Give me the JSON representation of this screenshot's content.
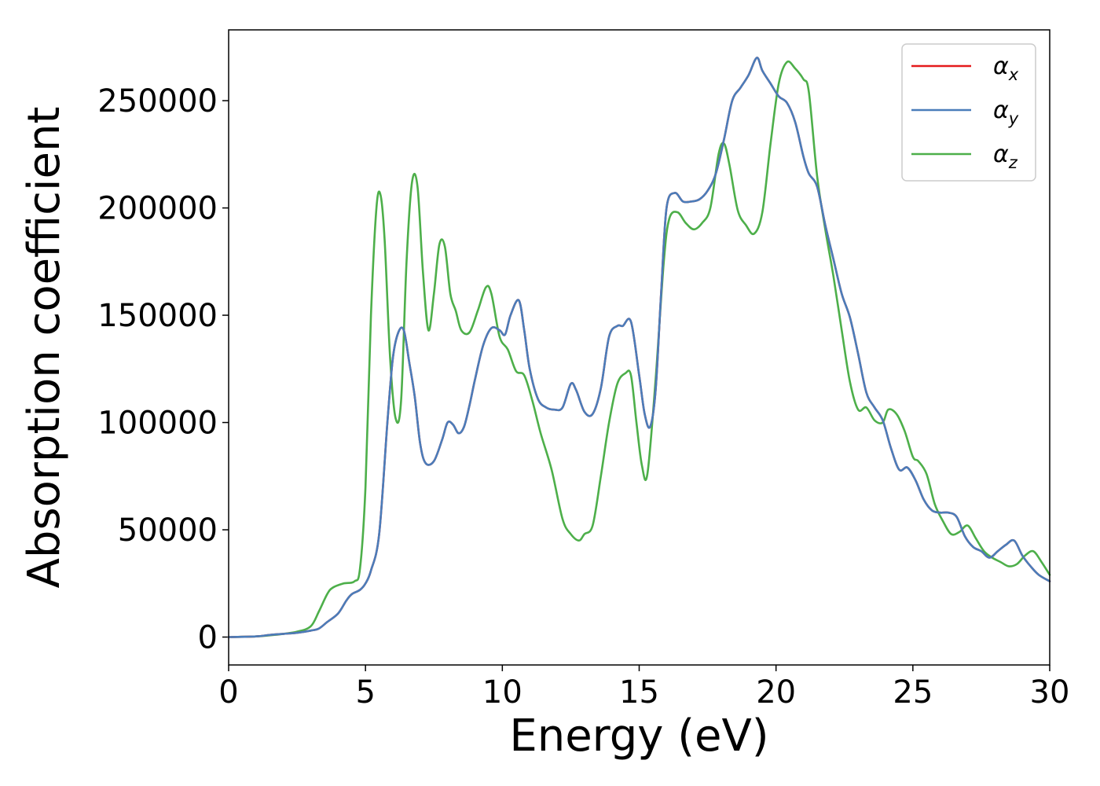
{
  "chart_data": {
    "type": "line",
    "xlabel": "Energy (eV)",
    "ylabel": "Absorption coefficient",
    "xlim": [
      0,
      30
    ],
    "ylim": [
      -13000,
      283000
    ],
    "xticks": [
      0,
      5,
      10,
      15,
      20,
      25,
      30
    ],
    "yticks": [
      0,
      50000,
      100000,
      150000,
      200000,
      250000
    ],
    "legend_position": "top-right",
    "grid": false,
    "series": [
      {
        "name": "αx",
        "label_base": "α",
        "label_sub": "x",
        "color": "#e41a1c",
        "x": [
          0,
          1,
          1.5,
          2,
          2.5,
          3,
          3.3,
          3.6,
          4,
          4.3,
          4.5,
          4.8,
          5,
          5.2,
          5.5,
          5.8,
          6,
          6.2,
          6.4,
          6.6,
          6.8,
          7,
          7.2,
          7.5,
          7.8,
          8,
          8.2,
          8.4,
          8.6,
          8.8,
          9,
          9.3,
          9.6,
          9.9,
          10.1,
          10.3,
          10.6,
          10.8,
          11,
          11.3,
          11.6,
          11.9,
          12.2,
          12.5,
          12.7,
          13,
          13.3,
          13.6,
          13.9,
          14.2,
          14.4,
          14.7,
          15,
          15.2,
          15.4,
          15.6,
          15.8,
          16,
          16.3,
          16.6,
          16.9,
          17.2,
          17.5,
          17.8,
          18.1,
          18.4,
          18.7,
          19,
          19.3,
          19.5,
          19.8,
          20.1,
          20.4,
          20.7,
          21,
          21.2,
          21.5,
          21.8,
          22.1,
          22.4,
          22.7,
          23,
          23.3,
          23.6,
          23.9,
          24.2,
          24.5,
          24.8,
          25.1,
          25.4,
          25.7,
          26,
          26.3,
          26.6,
          26.9,
          27.2,
          27.5,
          27.8,
          28.1,
          28.4,
          28.7,
          29,
          29.3,
          29.6,
          30
        ],
        "y": [
          0,
          300,
          1000,
          1500,
          2000,
          3000,
          4000,
          7000,
          11000,
          17000,
          20000,
          22000,
          25000,
          31000,
          48000,
          100000,
          130000,
          142000,
          143000,
          128000,
          112000,
          90000,
          81000,
          82000,
          92000,
          100000,
          99000,
          95000,
          98000,
          108000,
          120000,
          136000,
          144000,
          143000,
          141000,
          150000,
          157000,
          143000,
          125000,
          111000,
          107000,
          106000,
          107000,
          118000,
          115000,
          105000,
          104000,
          116000,
          140000,
          145000,
          145000,
          147000,
          122000,
          104000,
          98000,
          115000,
          160000,
          200000,
          207000,
          203000,
          203000,
          204000,
          208000,
          216000,
          232000,
          250000,
          256000,
          262000,
          270000,
          264000,
          258000,
          252000,
          249000,
          240000,
          224000,
          216000,
          210000,
          192000,
          176000,
          160000,
          149000,
          132000,
          114000,
          107000,
          101000,
          88000,
          78000,
          79000,
          73000,
          64000,
          59000,
          58000,
          58000,
          56000,
          47000,
          42000,
          40000,
          37000,
          40000,
          43000,
          45000,
          38000,
          33000,
          29000,
          26000
        ]
      },
      {
        "name": "αy",
        "label_base": "α",
        "label_sub": "y",
        "color": "#4a7dba",
        "x": [
          0,
          1,
          1.5,
          2,
          2.5,
          3,
          3.3,
          3.6,
          4,
          4.3,
          4.5,
          4.8,
          5,
          5.2,
          5.5,
          5.8,
          6,
          6.2,
          6.4,
          6.6,
          6.8,
          7,
          7.2,
          7.5,
          7.8,
          8,
          8.2,
          8.4,
          8.6,
          8.8,
          9,
          9.3,
          9.6,
          9.9,
          10.1,
          10.3,
          10.6,
          10.8,
          11,
          11.3,
          11.6,
          11.9,
          12.2,
          12.5,
          12.7,
          13,
          13.3,
          13.6,
          13.9,
          14.2,
          14.4,
          14.7,
          15,
          15.2,
          15.4,
          15.6,
          15.8,
          16,
          16.3,
          16.6,
          16.9,
          17.2,
          17.5,
          17.8,
          18.1,
          18.4,
          18.7,
          19,
          19.3,
          19.5,
          19.8,
          20.1,
          20.4,
          20.7,
          21,
          21.2,
          21.5,
          21.8,
          22.1,
          22.4,
          22.7,
          23,
          23.3,
          23.6,
          23.9,
          24.2,
          24.5,
          24.8,
          25.1,
          25.4,
          25.7,
          26,
          26.3,
          26.6,
          26.9,
          27.2,
          27.5,
          27.8,
          28.1,
          28.4,
          28.7,
          29,
          29.3,
          29.6,
          30
        ],
        "y": [
          0,
          300,
          1000,
          1500,
          2000,
          3000,
          4000,
          7000,
          11000,
          17000,
          20000,
          22000,
          25000,
          31000,
          48000,
          100000,
          130000,
          142000,
          143000,
          128000,
          112000,
          90000,
          81000,
          82000,
          92000,
          100000,
          99000,
          95000,
          98000,
          108000,
          120000,
          136000,
          144000,
          143000,
          141000,
          150000,
          157000,
          143000,
          125000,
          111000,
          107000,
          106000,
          107000,
          118000,
          115000,
          105000,
          104000,
          116000,
          140000,
          145000,
          145000,
          147000,
          122000,
          104000,
          98000,
          115000,
          160000,
          200000,
          207000,
          203000,
          203000,
          204000,
          208000,
          216000,
          232000,
          250000,
          256000,
          262000,
          270000,
          264000,
          258000,
          252000,
          249000,
          240000,
          224000,
          216000,
          210000,
          192000,
          176000,
          160000,
          149000,
          132000,
          114000,
          107000,
          101000,
          88000,
          78000,
          79000,
          73000,
          64000,
          59000,
          58000,
          58000,
          56000,
          47000,
          42000,
          40000,
          37000,
          40000,
          43000,
          45000,
          38000,
          33000,
          29000,
          26000
        ]
      },
      {
        "name": "αz",
        "label_base": "α",
        "label_sub": "z",
        "color": "#4daf4a",
        "x": [
          0,
          1,
          1.5,
          2,
          2.5,
          3,
          3.3,
          3.6,
          3.8,
          4.2,
          4.6,
          4.8,
          5,
          5.2,
          5.4,
          5.55,
          5.7,
          5.9,
          6.1,
          6.3,
          6.5,
          6.7,
          6.9,
          7.1,
          7.3,
          7.5,
          7.7,
          7.9,
          8.1,
          8.3,
          8.5,
          8.8,
          9.1,
          9.4,
          9.6,
          9.9,
          10.2,
          10.5,
          10.8,
          11.1,
          11.4,
          11.8,
          12.2,
          12.5,
          12.8,
          13,
          13.3,
          13.6,
          13.9,
          14.2,
          14.5,
          14.7,
          14.9,
          15.1,
          15.3,
          15.6,
          15.9,
          16.1,
          16.4,
          16.7,
          17,
          17.3,
          17.6,
          17.9,
          18.1,
          18.3,
          18.6,
          18.9,
          19.2,
          19.5,
          19.8,
          20.1,
          20.4,
          20.7,
          21,
          21.2,
          21.5,
          21.8,
          22.1,
          22.4,
          22.7,
          23,
          23.3,
          23.6,
          23.9,
          24.1,
          24.4,
          24.7,
          25,
          25.2,
          25.5,
          25.8,
          26.1,
          26.4,
          26.7,
          27,
          27.3,
          27.6,
          27.9,
          28.2,
          28.5,
          28.8,
          29.1,
          29.4,
          29.7,
          30
        ],
        "y": [
          0,
          300,
          800,
          1500,
          2500,
          5000,
          12000,
          20000,
          23000,
          25000,
          26000,
          32000,
          70000,
          150000,
          200000,
          206000,
          185000,
          130000,
          102000,
          110000,
          175000,
          212000,
          210000,
          170000,
          143000,
          160000,
          183000,
          182000,
          160000,
          152000,
          143000,
          142000,
          152000,
          163000,
          160000,
          140000,
          134000,
          124000,
          122000,
          110000,
          95000,
          78000,
          55000,
          48000,
          45000,
          48000,
          52000,
          75000,
          100000,
          118000,
          123000,
          122000,
          100000,
          80000,
          76000,
          120000,
          175000,
          195000,
          198000,
          193000,
          190000,
          193000,
          200000,
          225000,
          230000,
          220000,
          199000,
          192000,
          188000,
          198000,
          230000,
          258000,
          268000,
          265000,
          260000,
          254000,
          215000,
          190000,
          168000,
          143000,
          119000,
          106000,
          107000,
          101000,
          100000,
          106000,
          104000,
          96000,
          84000,
          82000,
          76000,
          62000,
          54000,
          48000,
          49000,
          52000,
          46000,
          40000,
          37000,
          35000,
          33000,
          34000,
          38000,
          40000,
          35000,
          29000
        ]
      }
    ]
  }
}
